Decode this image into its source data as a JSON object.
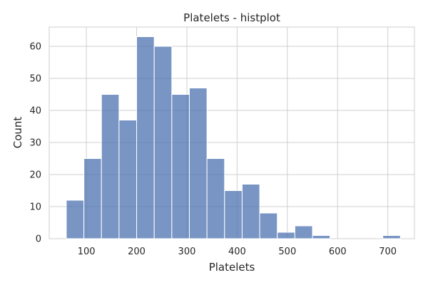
{
  "chart_data": {
    "type": "bar",
    "title": "Platelets - histplot",
    "xlabel": "Platelets",
    "ylabel": "Count",
    "xlim": [
      26,
      753
    ],
    "ylim": [
      0,
      66
    ],
    "xticks": [
      100,
      200,
      300,
      400,
      500,
      600,
      700
    ],
    "yticks": [
      0,
      10,
      20,
      30,
      40,
      50,
      60
    ],
    "bins": [
      {
        "start": 60,
        "end": 95,
        "count": 12
      },
      {
        "start": 95,
        "end": 130,
        "count": 25
      },
      {
        "start": 130,
        "end": 165,
        "count": 45
      },
      {
        "start": 165,
        "end": 200,
        "count": 37
      },
      {
        "start": 200,
        "end": 235,
        "count": 63
      },
      {
        "start": 235,
        "end": 270,
        "count": 60
      },
      {
        "start": 270,
        "end": 305,
        "count": 45
      },
      {
        "start": 305,
        "end": 340,
        "count": 47
      },
      {
        "start": 340,
        "end": 375,
        "count": 25
      },
      {
        "start": 375,
        "end": 410,
        "count": 15
      },
      {
        "start": 410,
        "end": 445,
        "count": 17
      },
      {
        "start": 445,
        "end": 480,
        "count": 8
      },
      {
        "start": 480,
        "end": 515,
        "count": 2
      },
      {
        "start": 515,
        "end": 550,
        "count": 4
      },
      {
        "start": 550,
        "end": 585,
        "count": 1
      },
      {
        "start": 585,
        "end": 620,
        "count": 0
      },
      {
        "start": 620,
        "end": 655,
        "count": 0
      },
      {
        "start": 655,
        "end": 690,
        "count": 0
      },
      {
        "start": 690,
        "end": 725,
        "count": 1
      }
    ],
    "grid": true,
    "legend": "none",
    "bar_color": "#4c72b0",
    "bar_opacity": 0.75
  }
}
